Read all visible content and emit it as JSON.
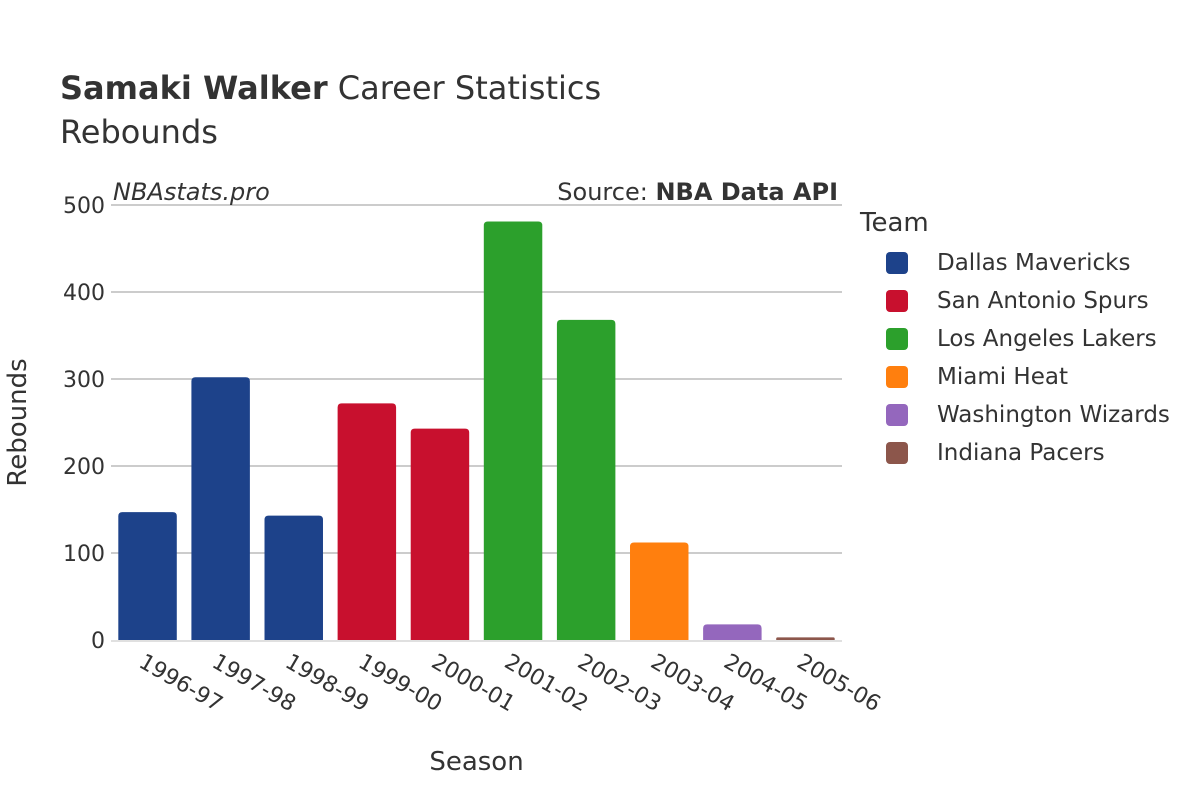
{
  "header": {
    "player_name": "Samaki Walker",
    "title_rest": " Career Statistics",
    "subtitle": "Rebounds"
  },
  "watermark": "NBAstats.pro",
  "source": {
    "prefix": "Source: ",
    "name": "NBA Data API"
  },
  "legend": {
    "title": "Team",
    "items": [
      {
        "label": "Dallas Mavericks",
        "color": "#1d428a"
      },
      {
        "label": "San Antonio Spurs",
        "color": "#c8102e"
      },
      {
        "label": "Los Angeles Lakers",
        "color": "#2ca02c"
      },
      {
        "label": "Miami Heat",
        "color": "#ff7f0e"
      },
      {
        "label": "Washington Wizards",
        "color": "#9467bd"
      },
      {
        "label": "Indiana Pacers",
        "color": "#8c564b"
      }
    ]
  },
  "chart_data": {
    "type": "bar",
    "xlabel": "Season",
    "ylabel": "Rebounds",
    "ylim": [
      0,
      500
    ],
    "yticks": [
      0,
      100,
      200,
      300,
      400,
      500
    ],
    "grid": true,
    "legend_position": "right",
    "categories": [
      "1996-97",
      "1997-98",
      "1998-99",
      "1999-00",
      "2000-01",
      "2001-02",
      "2002-03",
      "2003-04",
      "2004-05",
      "2005-06"
    ],
    "values": [
      147,
      302,
      143,
      272,
      243,
      481,
      368,
      112,
      18,
      3
    ],
    "teams": [
      "Dallas Mavericks",
      "Dallas Mavericks",
      "Dallas Mavericks",
      "San Antonio Spurs",
      "San Antonio Spurs",
      "Los Angeles Lakers",
      "Los Angeles Lakers",
      "Miami Heat",
      "Washington Wizards",
      "Indiana Pacers"
    ]
  }
}
